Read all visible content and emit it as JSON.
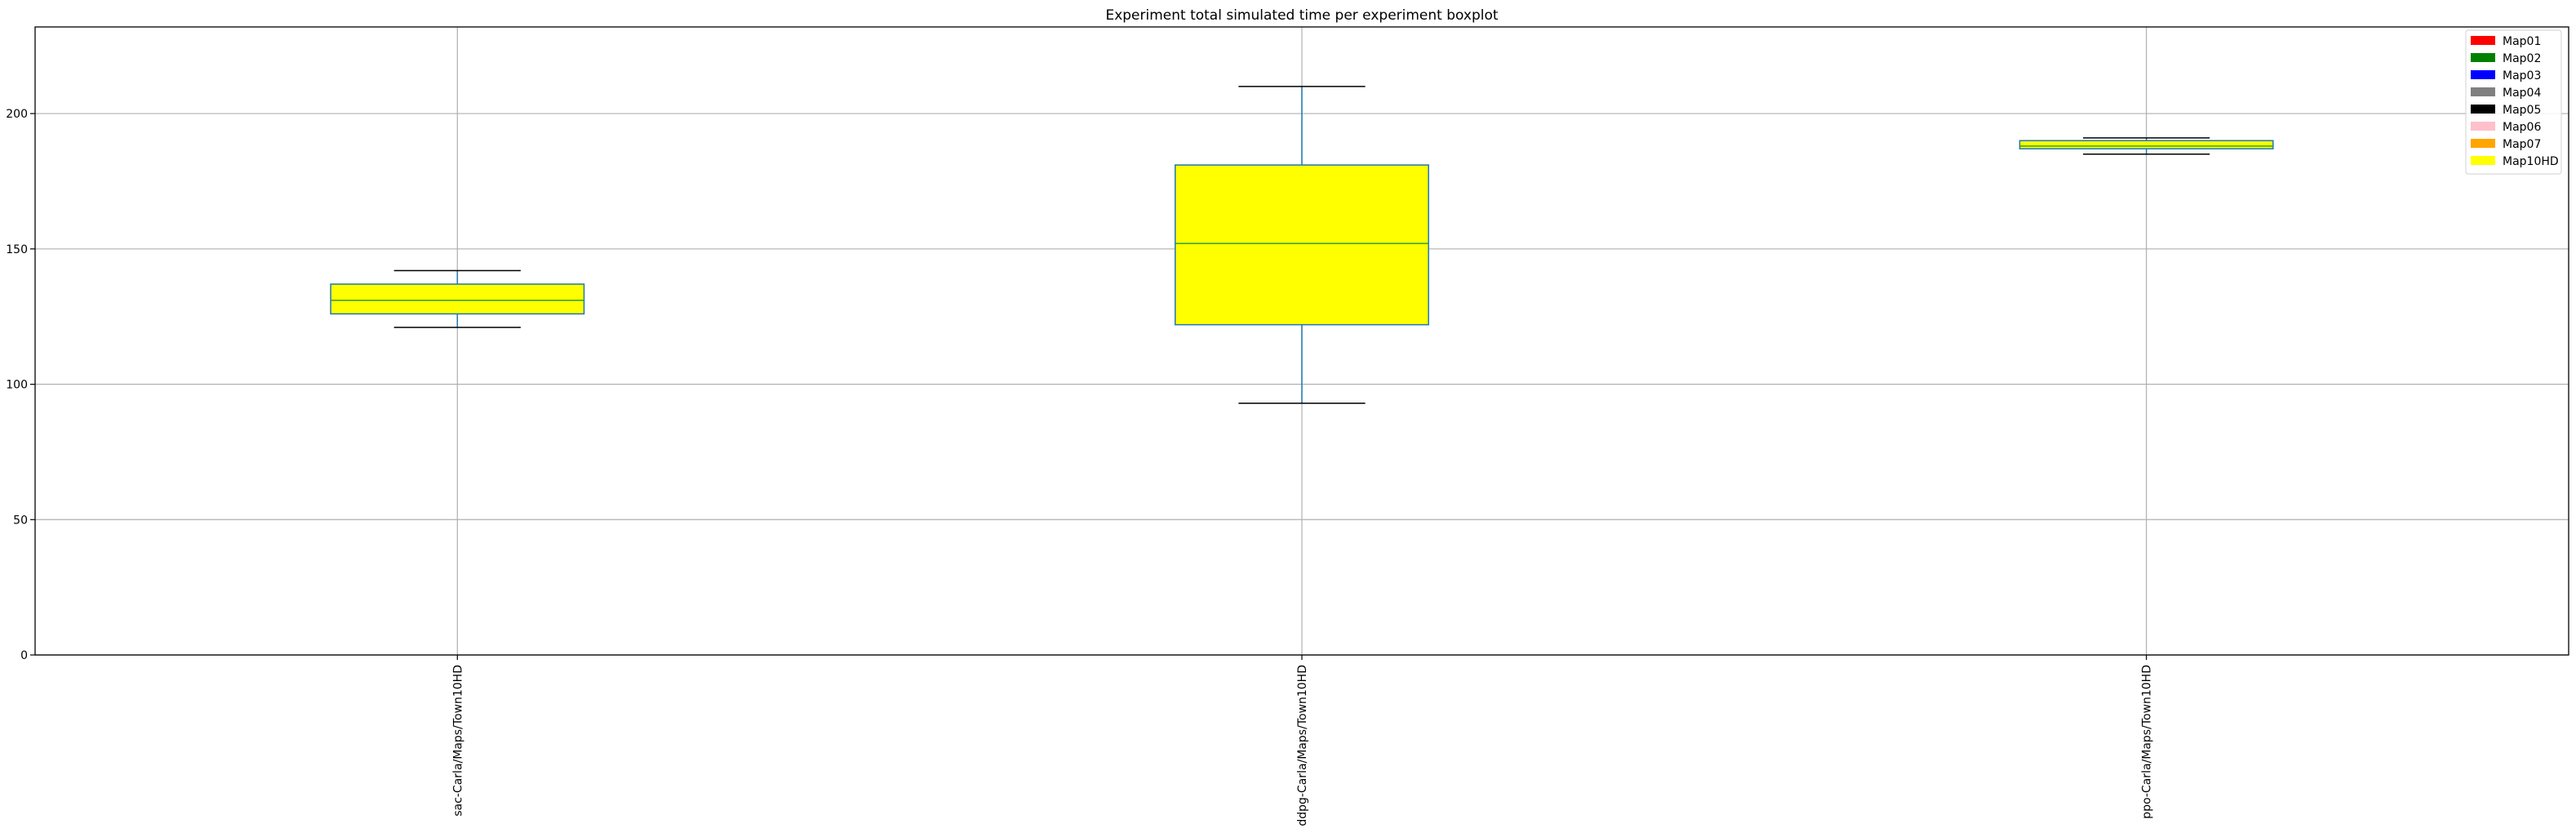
{
  "chart_data": {
    "type": "boxplot",
    "title": "Experiment total simulated time per experiment boxplot",
    "xlabel": "",
    "ylabel": "",
    "ylim": [
      0,
      232
    ],
    "yticks": [
      0,
      50,
      100,
      150,
      200
    ],
    "grid": true,
    "categories": [
      "sac-Carla/Maps/Town10HD",
      "ddpg-Carla/Maps/Town10HD",
      "ppo-Carla/Maps/Town10HD"
    ],
    "boxes": [
      {
        "category": "sac-Carla/Maps/Town10HD",
        "whisker_low": 121,
        "q1": 126,
        "median": 131,
        "q3": 137,
        "whisker_high": 142,
        "fill": "#ffff00"
      },
      {
        "category": "ddpg-Carla/Maps/Town10HD",
        "whisker_low": 93,
        "q1": 122,
        "median": 152,
        "q3": 181,
        "whisker_high": 210,
        "fill": "#ffff00"
      },
      {
        "category": "ppo-Carla/Maps/Town10HD",
        "whisker_low": 185,
        "q1": 187,
        "median": 188,
        "q3": 190,
        "whisker_high": 191,
        "fill": "#ffff00"
      }
    ],
    "box_edge_color": "#1f77b4",
    "median_color": "#2ca02c",
    "cap_color": "#000000",
    "legend": {
      "placement": "top-right",
      "entries": [
        {
          "label": "Map01",
          "color": "#ff0000"
        },
        {
          "label": "Map02",
          "color": "#008000"
        },
        {
          "label": "Map03",
          "color": "#0000ff"
        },
        {
          "label": "Map04",
          "color": "#808080"
        },
        {
          "label": "Map05",
          "color": "#000000"
        },
        {
          "label": "Map06",
          "color": "#ffc0cb"
        },
        {
          "label": "Map07",
          "color": "#ffa500"
        },
        {
          "label": "Map10HD",
          "color": "#ffff00"
        }
      ]
    }
  }
}
